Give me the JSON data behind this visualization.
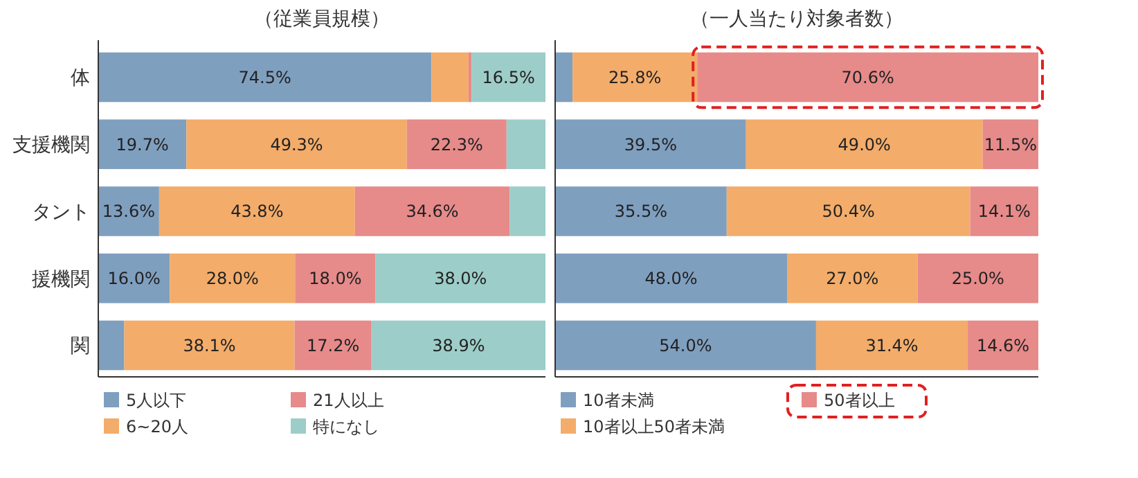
{
  "chart_data": [
    {
      "type": "bar",
      "orientation": "horizontal",
      "stacked": true,
      "title": "（従業員規模）",
      "categories": [
        "体",
        "支援機関",
        "タント",
        "援機関",
        "関"
      ],
      "xlim": [
        0,
        100
      ],
      "tick_labels": "y",
      "legend": "bottom",
      "series": [
        {
          "name": "5人以下",
          "color": "#7f9fbf",
          "values": [
            74.5,
            19.7,
            13.6,
            16.0,
            5.8
          ],
          "value_labels": [
            "74.5%",
            "19.7%",
            "13.6%",
            "16.0%",
            null
          ]
        },
        {
          "name": "6~20人",
          "color": "#f3ac6a",
          "values": [
            8.3,
            49.3,
            43.8,
            28.0,
            38.1
          ],
          "value_labels": [
            null,
            "49.3%",
            "43.8%",
            "28.0%",
            "38.1%"
          ]
        },
        {
          "name": "21人以上",
          "color": "#e78a8a",
          "values": [
            0.7,
            22.3,
            34.6,
            18.0,
            17.2
          ],
          "value_labels": [
            null,
            "22.3%",
            "34.6%",
            "18.0%",
            "17.2%"
          ]
        },
        {
          "name": "特になし",
          "color": "#9dcdc8",
          "values": [
            16.5,
            8.7,
            8.0,
            38.0,
            38.9
          ],
          "value_labels": [
            "16.5%",
            null,
            null,
            "38.0%",
            "38.9%"
          ]
        }
      ]
    },
    {
      "type": "bar",
      "orientation": "horizontal",
      "stacked": true,
      "title": "（一人当たり対象者数）",
      "categories": [
        null,
        null,
        null,
        null,
        null
      ],
      "xlim": [
        0,
        100
      ],
      "tick_labels": "y",
      "legend": "bottom",
      "series": [
        {
          "name": "10者未満",
          "color": "#7f9fbf",
          "values": [
            3.6,
            39.5,
            35.5,
            48.0,
            54.0
          ],
          "value_labels": [
            null,
            "39.5%",
            "35.5%",
            "48.0%",
            "54.0%"
          ]
        },
        {
          "name": "10者以上50者未満",
          "color": "#f3ac6a",
          "values": [
            25.8,
            49.0,
            50.4,
            27.0,
            31.4
          ],
          "value_labels": [
            "25.8%",
            "49.0%",
            "50.4%",
            "27.0%",
            "31.4%"
          ]
        },
        {
          "name": "50者以上",
          "color": "#e78a8a",
          "values": [
            70.6,
            11.5,
            14.1,
            25.0,
            14.6
          ],
          "value_labels": [
            "70.6%",
            "11.5%",
            "14.1%",
            "25.0%",
            "14.6%"
          ]
        }
      ]
    }
  ]
}
